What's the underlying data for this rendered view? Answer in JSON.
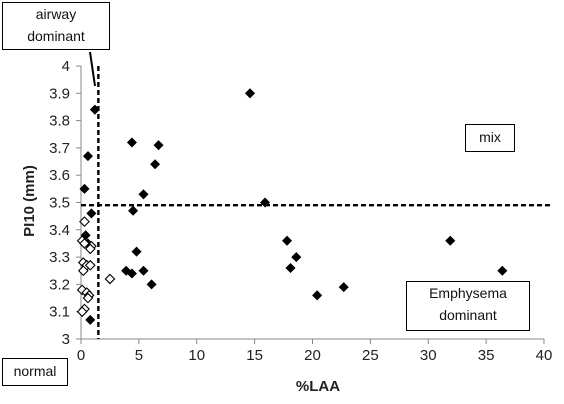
{
  "chart_data": {
    "type": "scatter",
    "xlabel": "%LAA",
    "ylabel": "PI10 (mm)",
    "xlim": [
      0,
      40
    ],
    "ylim": [
      3,
      4
    ],
    "x_ticks": [
      0,
      5,
      10,
      15,
      20,
      25,
      30,
      35,
      40
    ],
    "y_ticks": [
      "3",
      "3.1",
      "3.2",
      "3.3",
      "3.4",
      "3.5",
      "3.6",
      "3.7",
      "3.8",
      "3.9",
      "4"
    ],
    "grid": false,
    "thresholds": {
      "x": 1.5,
      "y": 3.49
    },
    "annotations": {
      "airway_dominant": [
        "airway",
        "dominant"
      ],
      "mix": "mix",
      "emphysema_dominant": [
        "Emphysema",
        "dominant"
      ],
      "normal": "normal"
    },
    "series": [
      {
        "marker": "filled-diamond",
        "color": "#000000",
        "points": [
          [
            1.2,
            3.84
          ],
          [
            0.6,
            3.67
          ],
          [
            0.3,
            3.55
          ],
          [
            0.9,
            3.46
          ],
          [
            0.4,
            3.38
          ],
          [
            0.6,
            3.35
          ],
          [
            0.8,
            3.07
          ],
          [
            4.4,
            3.72
          ],
          [
            6.7,
            3.71
          ],
          [
            6.4,
            3.64
          ],
          [
            5.4,
            3.53
          ],
          [
            4.5,
            3.47
          ],
          [
            4.8,
            3.32
          ],
          [
            3.9,
            3.25
          ],
          [
            4.4,
            3.24
          ],
          [
            5.4,
            3.25
          ],
          [
            6.1,
            3.2
          ],
          [
            14.6,
            3.9
          ],
          [
            15.9,
            3.5
          ],
          [
            17.8,
            3.36
          ],
          [
            18.1,
            3.26
          ],
          [
            18.6,
            3.3
          ],
          [
            20.4,
            3.16
          ],
          [
            22.7,
            3.19
          ],
          [
            31.9,
            3.36
          ],
          [
            36.4,
            3.25
          ]
        ]
      },
      {
        "marker": "hollow-diamond",
        "color": "#000000",
        "points": [
          [
            0.3,
            3.43
          ],
          [
            0.1,
            3.36
          ],
          [
            0.3,
            3.35
          ],
          [
            0.9,
            3.34
          ],
          [
            0.8,
            3.33
          ],
          [
            0.2,
            3.28
          ],
          [
            0.5,
            3.27
          ],
          [
            0.8,
            3.27
          ],
          [
            0.2,
            3.25
          ],
          [
            2.5,
            3.22
          ],
          [
            0.1,
            3.18
          ],
          [
            0.5,
            3.17
          ],
          [
            0.7,
            3.16
          ],
          [
            0.6,
            3.15
          ],
          [
            0.3,
            3.11
          ],
          [
            0.1,
            3.1
          ]
        ]
      }
    ]
  }
}
